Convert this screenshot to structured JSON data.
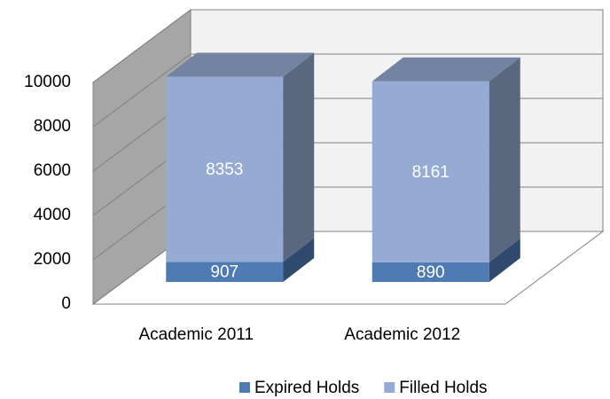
{
  "chart_data": {
    "type": "bar3d_stacked",
    "categories": [
      "Academic 2011",
      "Academic 2012"
    ],
    "series": [
      {
        "name": "Expired Holds",
        "color": "#4f7bb5",
        "values": [
          907,
          890
        ]
      },
      {
        "name": "Filled Holds",
        "color": "#95abd4",
        "values": [
          8353,
          8161
        ]
      }
    ],
    "ylim": [
      0,
      10000
    ],
    "yticks": [
      0,
      2000,
      4000,
      6000,
      8000,
      10000
    ],
    "grid": true,
    "legend": "bottom"
  }
}
